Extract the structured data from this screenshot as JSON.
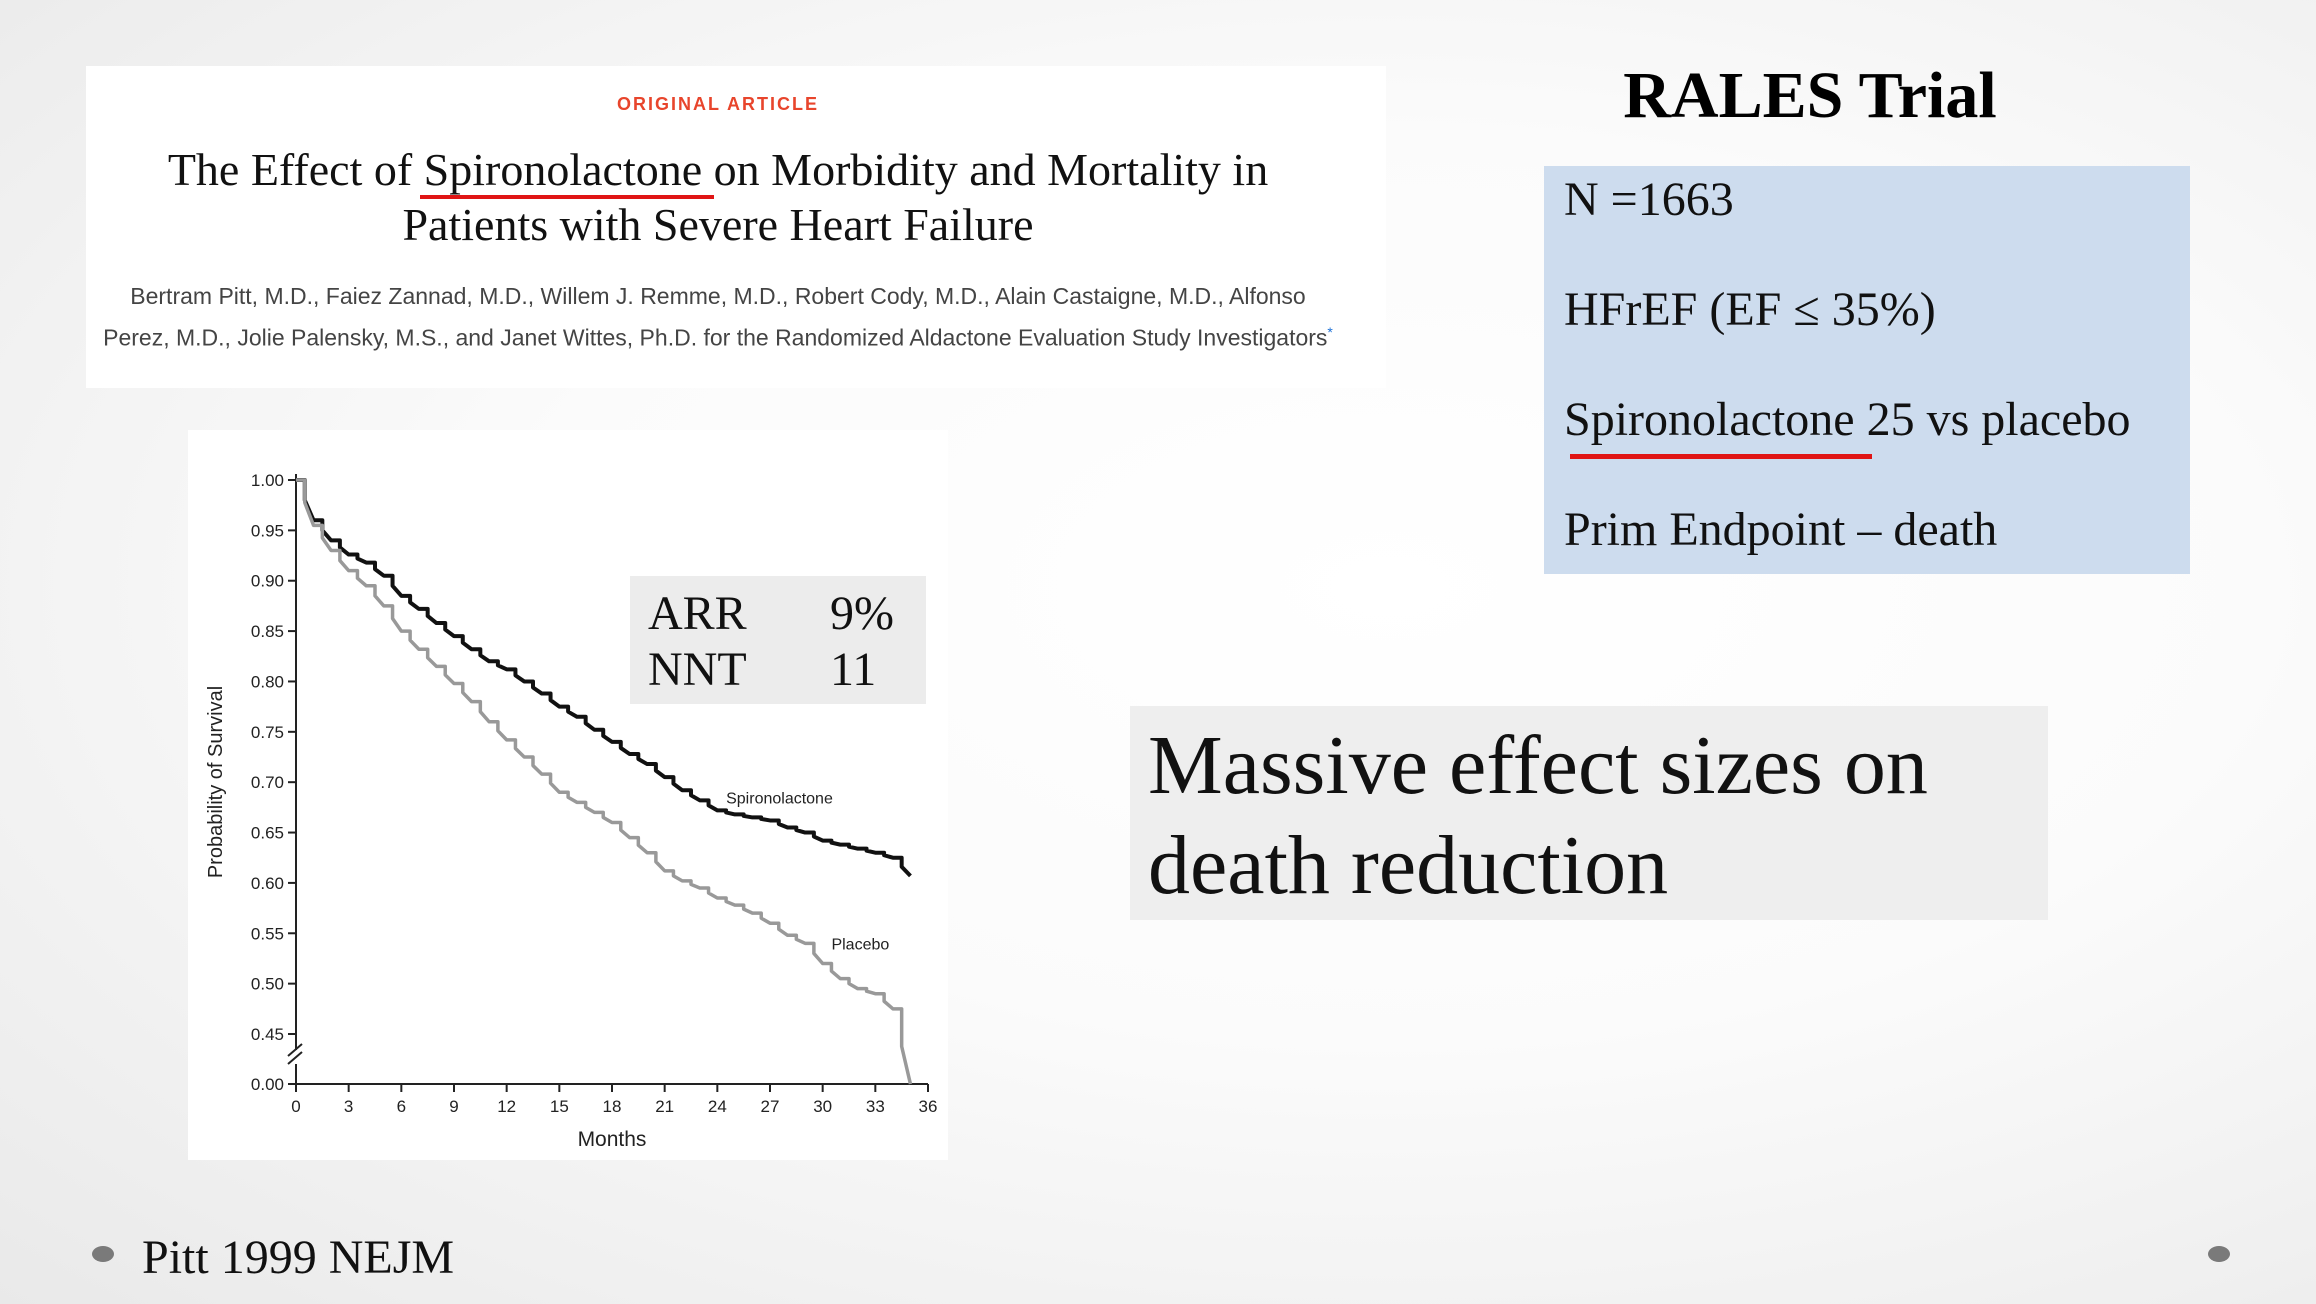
{
  "article": {
    "label": "ORIGINAL ARTICLE",
    "title_pre": "The Effect of ",
    "title_drug": "Spironolactone",
    "title_post_line1": " on Morbidity and Mortality in",
    "title_line2": "Patients with Severe Heart Failure",
    "authors": "Bertram Pitt, M.D., Faiez Zannad, M.D., Willem J. Remme, M.D., Robert Cody, M.D., Alain Castaigne, M.D., Alfonso Perez, M.D., Jolie Palensky, M.S., and Janet Wittes, Ph.D. for the Randomized Aldactone Evaluation Study Investigators",
    "authors_mark": "*"
  },
  "stats_box": {
    "rows": [
      {
        "label": "ARR",
        "value": "9%"
      },
      {
        "label": "NNT",
        "value": "11"
      }
    ]
  },
  "rales": {
    "title": "RALES Trial",
    "items": [
      "N =1663",
      "HFrEF (EF ≤ 35%)",
      "Spironolactone 25 vs placebo",
      "Prim Endpoint – death"
    ]
  },
  "highlight": {
    "text": "Massive effect sizes on death reduction"
  },
  "citation": "Pitt 1999 NEJM",
  "colors": {
    "accent_red": "#e01515",
    "label_red": "#e8452c",
    "rales_box": "#cddcee",
    "spironolactone_line": "#111111",
    "placebo_line": "#999999"
  },
  "chart_data": {
    "type": "line",
    "title": "",
    "xlabel": "Months",
    "ylabel": "Probability of Survival",
    "x_ticks": [
      0,
      3,
      6,
      9,
      12,
      15,
      18,
      21,
      24,
      27,
      30,
      33,
      36
    ],
    "y_ticks": [
      0.0,
      0.45,
      0.5,
      0.55,
      0.6,
      0.65,
      0.7,
      0.75,
      0.8,
      0.85,
      0.9,
      0.95,
      1.0
    ],
    "y_tick_labels": [
      "0.00",
      "0.45",
      "0.50",
      "0.55",
      "0.60",
      "0.65",
      "0.70",
      "0.75",
      "0.80",
      "0.85",
      "0.90",
      "0.95",
      "1.00"
    ],
    "xlim": [
      0,
      36
    ],
    "ylim": [
      0.45,
      1.0
    ],
    "axis_break": true,
    "series": [
      {
        "name": "Spironolactone",
        "x": [
          0,
          1,
          2,
          3,
          4,
          5,
          6,
          7,
          8,
          9,
          10,
          11,
          12,
          13,
          14,
          15,
          16,
          17,
          18,
          19,
          20,
          21,
          22,
          23,
          24,
          25,
          26,
          27,
          28,
          29,
          30,
          31,
          32,
          33,
          34,
          35
        ],
        "y": [
          1.0,
          0.96,
          0.94,
          0.926,
          0.918,
          0.905,
          0.885,
          0.872,
          0.858,
          0.845,
          0.832,
          0.82,
          0.812,
          0.8,
          0.788,
          0.775,
          0.765,
          0.752,
          0.74,
          0.728,
          0.718,
          0.705,
          0.692,
          0.682,
          0.672,
          0.668,
          0.665,
          0.662,
          0.655,
          0.65,
          0.642,
          0.638,
          0.634,
          0.63,
          0.625,
          0.607
        ]
      },
      {
        "name": "Placebo",
        "x": [
          0,
          1,
          2,
          3,
          4,
          5,
          6,
          7,
          8,
          9,
          10,
          11,
          12,
          13,
          14,
          15,
          16,
          17,
          18,
          19,
          20,
          21,
          22,
          23,
          24,
          25,
          26,
          27,
          28,
          29,
          30,
          31,
          32,
          33,
          34,
          35
        ],
        "y": [
          1.0,
          0.955,
          0.93,
          0.91,
          0.895,
          0.875,
          0.85,
          0.832,
          0.815,
          0.798,
          0.78,
          0.76,
          0.742,
          0.725,
          0.708,
          0.69,
          0.68,
          0.67,
          0.66,
          0.645,
          0.63,
          0.612,
          0.602,
          0.595,
          0.585,
          0.578,
          0.57,
          0.56,
          0.548,
          0.54,
          0.52,
          0.505,
          0.495,
          0.49,
          0.475,
          0.448
        ]
      }
    ]
  }
}
